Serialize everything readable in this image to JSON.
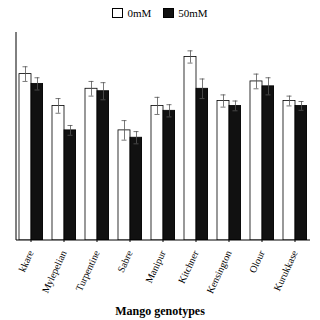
{
  "chart_data": {
    "type": "bar",
    "xlabel": "Mango genotypes",
    "categories": [
      "kkare",
      "Mylepelian",
      "Turpentine",
      "Sabre",
      "Manipur",
      "Kitchner",
      "Kensington",
      "Olour",
      "Kurukkase"
    ],
    "series": [
      {
        "name": "0mM",
        "color": "#ffffff",
        "values": [
          68,
          55,
          62,
          45,
          55,
          75,
          57,
          65,
          57
        ],
        "errors": [
          3.0,
          3.0,
          3.0,
          4.0,
          3.5,
          2.5,
          2.5,
          3.0,
          2.0
        ]
      },
      {
        "name": "50mM",
        "color": "#111111",
        "values": [
          64,
          45,
          61,
          42,
          53,
          62,
          55,
          63,
          55
        ],
        "errors": [
          2.5,
          2.0,
          3.5,
          2.5,
          2.5,
          4.0,
          2.0,
          3.5,
          1.8
        ]
      }
    ],
    "ylim": [
      0,
      85
    ],
    "tick_labels": "x",
    "legend": "top"
  }
}
